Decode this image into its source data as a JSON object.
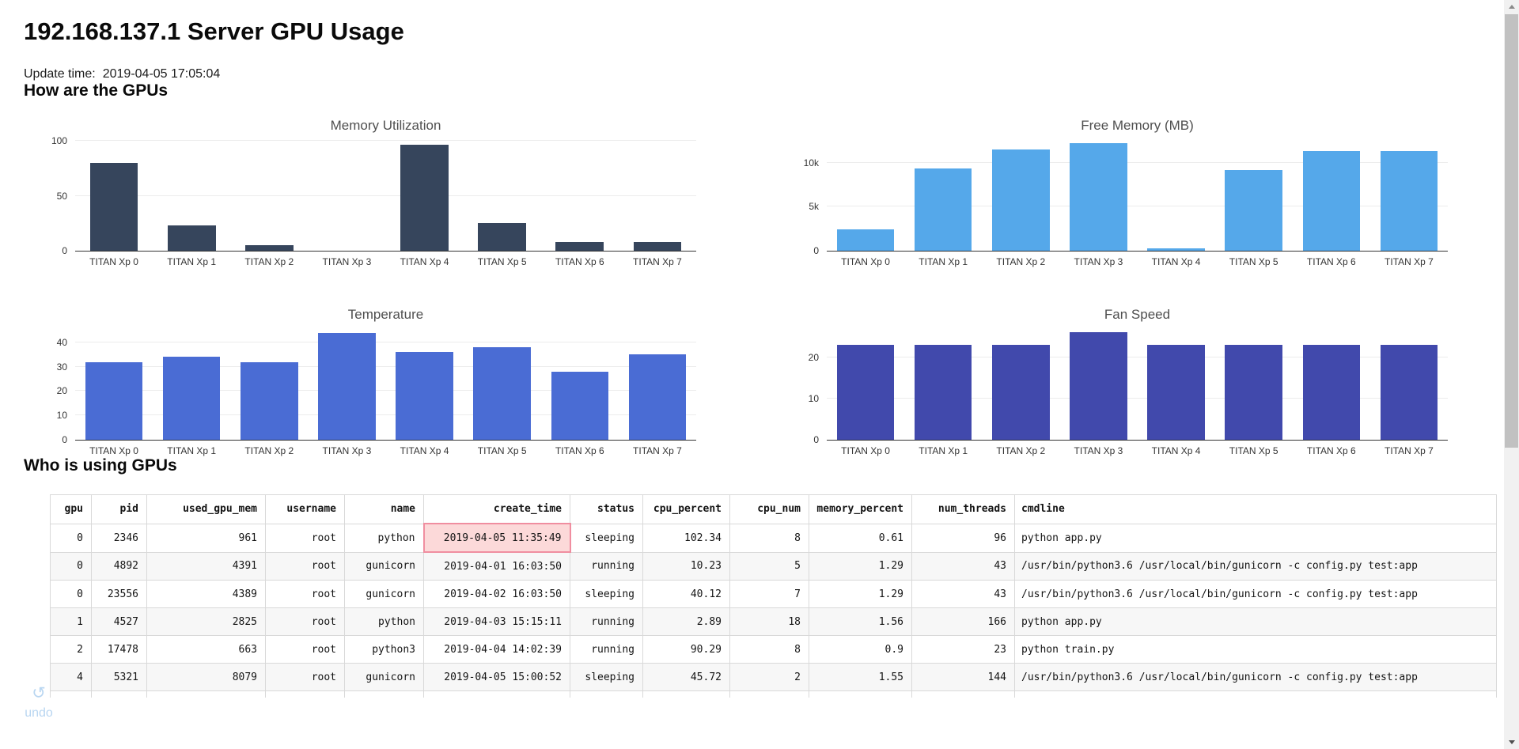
{
  "page": {
    "title": "192.168.137.1 Server GPU Usage",
    "update_time_label": "Update time:",
    "update_time_value": "2019-04-05 17:05:04",
    "section_gpus": "How are the GPUs",
    "section_users": "Who is using GPUs"
  },
  "chart_data": [
    {
      "type": "bar",
      "title": "Memory Utilization",
      "categories": [
        "TITAN Xp 0",
        "TITAN Xp 1",
        "TITAN Xp 2",
        "TITAN Xp 3",
        "TITAN Xp 4",
        "TITAN Xp 5",
        "TITAN Xp 6",
        "TITAN Xp 7"
      ],
      "values": [
        80,
        23,
        5,
        0,
        97,
        25,
        8,
        8
      ],
      "ylim": [
        0,
        101
      ],
      "yticks": [
        0,
        50,
        100
      ],
      "ytick_labels": [
        "0",
        "50",
        "100"
      ],
      "bar_color": "#36455c",
      "grid": true,
      "legend": "none"
    },
    {
      "type": "bar",
      "title": "Free Memory (MB)",
      "categories": [
        "TITAN Xp 0",
        "TITAN Xp 1",
        "TITAN Xp 2",
        "TITAN Xp 3",
        "TITAN Xp 4",
        "TITAN Xp 5",
        "TITAN Xp 6",
        "TITAN Xp 7"
      ],
      "values": [
        2400,
        9400,
        11500,
        12200,
        300,
        9200,
        11300,
        11300
      ],
      "ylim": [
        0,
        12600
      ],
      "yticks": [
        0,
        5000,
        10000
      ],
      "ytick_labels": [
        "0",
        "5k",
        "10k"
      ],
      "bar_color": "#55a8ea",
      "grid": true,
      "legend": "none"
    },
    {
      "type": "bar",
      "title": "Temperature",
      "categories": [
        "TITAN Xp 0",
        "TITAN Xp 1",
        "TITAN Xp 2",
        "TITAN Xp 3",
        "TITAN Xp 4",
        "TITAN Xp 5",
        "TITAN Xp 6",
        "TITAN Xp 7"
      ],
      "values": [
        32,
        34,
        32,
        44,
        36,
        38,
        28,
        35
      ],
      "ylim": [
        0,
        45.5
      ],
      "yticks": [
        0,
        10,
        20,
        30,
        40
      ],
      "ytick_labels": [
        "0",
        "10",
        "20",
        "30",
        "40"
      ],
      "bar_color": "#4a6cd4",
      "grid": true,
      "legend": "none"
    },
    {
      "type": "bar",
      "title": "Fan Speed",
      "categories": [
        "TITAN Xp 0",
        "TITAN Xp 1",
        "TITAN Xp 2",
        "TITAN Xp 3",
        "TITAN Xp 4",
        "TITAN Xp 5",
        "TITAN Xp 6",
        "TITAN Xp 7"
      ],
      "values": [
        23,
        23,
        23,
        26,
        23,
        23,
        23,
        23
      ],
      "ylim": [
        0,
        26.8
      ],
      "yticks": [
        0,
        10,
        20
      ],
      "ytick_labels": [
        "0",
        "10",
        "20"
      ],
      "bar_color": "#4149ac",
      "grid": true,
      "legend": "none"
    }
  ],
  "table": {
    "columns": [
      "gpu",
      "pid",
      "used_gpu_mem",
      "username",
      "name",
      "create_time",
      "status",
      "cpu_percent",
      "cpu_num",
      "memory_percent",
      "num_threads",
      "cmdline"
    ],
    "rows": [
      [
        "0",
        "2346",
        "961",
        "root",
        "python",
        "2019-04-05 11:35:49",
        "sleeping",
        "102.34",
        "8",
        "0.61",
        "96",
        "python app.py"
      ],
      [
        "0",
        "4892",
        "4391",
        "root",
        "gunicorn",
        "2019-04-01 16:03:50",
        "running",
        "10.23",
        "5",
        "1.29",
        "43",
        "/usr/bin/python3.6 /usr/local/bin/gunicorn -c config.py test:app"
      ],
      [
        "0",
        "23556",
        "4389",
        "root",
        "gunicorn",
        "2019-04-02 16:03:50",
        "sleeping",
        "40.12",
        "7",
        "1.29",
        "43",
        "/usr/bin/python3.6 /usr/local/bin/gunicorn -c config.py test:app"
      ],
      [
        "1",
        "4527",
        "2825",
        "root",
        "python",
        "2019-04-03 15:15:11",
        "running",
        "2.89",
        "18",
        "1.56",
        "166",
        "python app.py"
      ],
      [
        "2",
        "17478",
        "663",
        "root",
        "python3",
        "2019-04-04 14:02:39",
        "running",
        "90.29",
        "8",
        "0.9",
        "23",
        "python train.py"
      ],
      [
        "4",
        "5321",
        "8079",
        "root",
        "gunicorn",
        "2019-04-05 15:00:52",
        "sleeping",
        "45.72",
        "2",
        "1.55",
        "144",
        "/usr/bin/python3.6 /usr/local/bin/gunicorn -c config.py test:app"
      ]
    ],
    "highlighted_cell": {
      "row_index": 0,
      "column": "create_time"
    }
  },
  "undo": {
    "label": "undo",
    "icon": "undo-arrow"
  },
  "colors": {
    "memory_utilization_bar": "#36455c",
    "free_memory_bar": "#55a8ea",
    "temperature_bar": "#4a6cd4",
    "fan_speed_bar": "#4149ac",
    "highlight_bg": "#fcd9d9",
    "highlight_border": "#f08ea0",
    "stripe_row_bg": "#f7f7f7",
    "axis_line": "#333333",
    "grid_line": "#ececec",
    "undo_text": "#b9d6f1"
  }
}
